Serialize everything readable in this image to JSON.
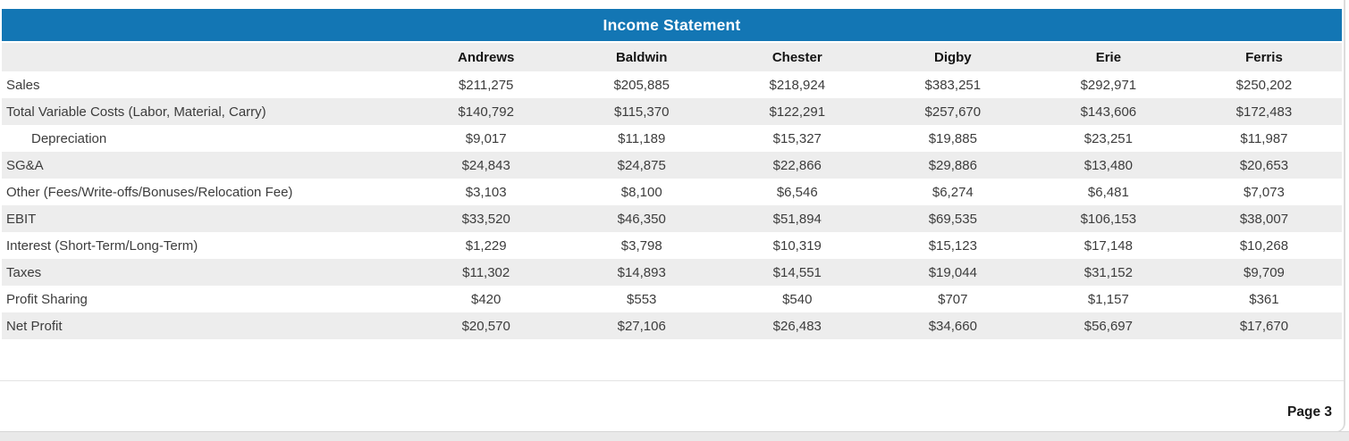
{
  "report": {
    "title": "Income Statement",
    "page_label": "Page 3"
  },
  "table": {
    "columns": [
      "Andrews",
      "Baldwin",
      "Chester",
      "Digby",
      "Erie",
      "Ferris"
    ],
    "rows": [
      {
        "label": "Sales",
        "indent": false,
        "values": [
          "$211,275",
          "$205,885",
          "$218,924",
          "$383,251",
          "$292,971",
          "$250,202"
        ]
      },
      {
        "label": "Total Variable Costs (Labor, Material, Carry)",
        "indent": false,
        "values": [
          "$140,792",
          "$115,370",
          "$122,291",
          "$257,670",
          "$143,606",
          "$172,483"
        ]
      },
      {
        "label": "Depreciation",
        "indent": true,
        "values": [
          "$9,017",
          "$11,189",
          "$15,327",
          "$19,885",
          "$23,251",
          "$11,987"
        ]
      },
      {
        "label": "SG&A",
        "indent": false,
        "values": [
          "$24,843",
          "$24,875",
          "$22,866",
          "$29,886",
          "$13,480",
          "$20,653"
        ]
      },
      {
        "label": "Other (Fees/Write-offs/Bonuses/Relocation Fee)",
        "indent": false,
        "values": [
          "$3,103",
          "$8,100",
          "$6,546",
          "$6,274",
          "$6,481",
          "$7,073"
        ]
      },
      {
        "label": "EBIT",
        "indent": false,
        "values": [
          "$33,520",
          "$46,350",
          "$51,894",
          "$69,535",
          "$106,153",
          "$38,007"
        ]
      },
      {
        "label": "Interest (Short-Term/Long-Term)",
        "indent": false,
        "values": [
          "$1,229",
          "$3,798",
          "$10,319",
          "$15,123",
          "$17,148",
          "$10,268"
        ]
      },
      {
        "label": "Taxes",
        "indent": false,
        "values": [
          "$11,302",
          "$14,893",
          "$14,551",
          "$19,044",
          "$31,152",
          "$9,709"
        ]
      },
      {
        "label": "Profit Sharing",
        "indent": false,
        "values": [
          "$420",
          "$553",
          "$540",
          "$707",
          "$1,157",
          "$361"
        ]
      },
      {
        "label": "Net Profit",
        "indent": false,
        "values": [
          "$20,570",
          "$27,106",
          "$26,483",
          "$34,660",
          "$56,697",
          "$17,670"
        ]
      }
    ]
  },
  "colors": {
    "title_bar_background": "#1376b4",
    "title_text": "#ffffff",
    "row_stripe": "#ededed",
    "body_text": "#3c3c3c",
    "page_background_strip": "#e9e9e9"
  }
}
